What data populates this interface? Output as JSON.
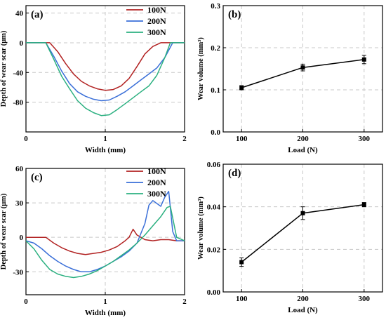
{
  "colors": {
    "100N": "#b22222",
    "200N": "#3a6fd8",
    "300N": "#2bb080",
    "line": "#000000",
    "grid": "#c8c8c8"
  },
  "chart_data": [
    {
      "type": "line",
      "panel_label": "(a)",
      "xlabel": "Width (mm)",
      "ylabel": "Depth of wear scar (μm)",
      "xlim": [
        0,
        2
      ],
      "ylim": [
        -120,
        50
      ],
      "xticks": [
        0,
        1,
        2
      ],
      "xtick_labels": [
        "0",
        "1",
        "2"
      ],
      "yticks": [
        40,
        0,
        -40,
        -80
      ],
      "ytick_labels": [
        "40",
        "0",
        "-40",
        "-80"
      ],
      "grid": true,
      "legend_position": "top-center",
      "series": [
        {
          "name": "100N",
          "color_key": "100N",
          "x": [
            0.0,
            0.3,
            0.4,
            0.5,
            0.6,
            0.7,
            0.8,
            0.9,
            1.0,
            1.1,
            1.2,
            1.3,
            1.4,
            1.5,
            1.6,
            1.7,
            1.8,
            1.9,
            2.0
          ],
          "y": [
            0,
            0,
            -12,
            -28,
            -42,
            -52,
            -58,
            -62,
            -64,
            -63,
            -58,
            -48,
            -32,
            -15,
            -5,
            0,
            0,
            0,
            0
          ]
        },
        {
          "name": "200N",
          "color_key": "200N",
          "x": [
            0.0,
            0.25,
            0.35,
            0.45,
            0.55,
            0.65,
            0.75,
            0.85,
            0.95,
            1.05,
            1.15,
            1.25,
            1.35,
            1.45,
            1.55,
            1.65,
            1.75,
            1.85,
            2.0
          ],
          "y": [
            0,
            0,
            -18,
            -38,
            -55,
            -66,
            -72,
            -76,
            -78,
            -77,
            -72,
            -66,
            -58,
            -50,
            -42,
            -34,
            -20,
            0,
            0
          ]
        },
        {
          "name": "300N",
          "color_key": "300N",
          "x": [
            0.0,
            0.25,
            0.35,
            0.45,
            0.55,
            0.65,
            0.75,
            0.85,
            0.95,
            1.05,
            1.15,
            1.25,
            1.35,
            1.45,
            1.55,
            1.65,
            1.75,
            1.82,
            2.0
          ],
          "y": [
            0,
            0,
            -22,
            -45,
            -62,
            -78,
            -88,
            -94,
            -98,
            -97,
            -90,
            -82,
            -74,
            -66,
            -58,
            -44,
            -20,
            0,
            0
          ]
        }
      ]
    },
    {
      "type": "line",
      "panel_label": "(b)",
      "xlabel": "Load (N)",
      "ylabel": "Wear volume (mm³)",
      "xlim": [
        70,
        330
      ],
      "ylim": [
        0.0,
        0.3
      ],
      "xticks": [
        100,
        200,
        300
      ],
      "xtick_labels": [
        "100",
        "200",
        "300"
      ],
      "yticks": [
        0.0,
        0.1,
        0.2,
        0.3
      ],
      "ytick_labels": [
        "0.0",
        "0.1",
        "0.2",
        "0.3"
      ],
      "grid": true,
      "series": [
        {
          "color_key": "line",
          "x": [
            100,
            200,
            300
          ],
          "y": [
            0.105,
            0.153,
            0.172
          ],
          "error": [
            0.005,
            0.008,
            0.01
          ]
        }
      ]
    },
    {
      "type": "line",
      "panel_label": "(c)",
      "xlabel": "Width (mm)",
      "ylabel": "Depth of wear scar (μm)",
      "xlim": [
        0,
        2
      ],
      "ylim": [
        -50,
        60
      ],
      "xticks": [
        0,
        1,
        2
      ],
      "xtick_labels": [
        "0",
        "1",
        "2"
      ],
      "yticks": [
        60,
        30,
        0,
        -30
      ],
      "ytick_labels": [
        "60",
        "30",
        "0",
        "-30"
      ],
      "grid": true,
      "legend_position": "top-center",
      "series": [
        {
          "name": "100N",
          "color_key": "100N",
          "x": [
            0.0,
            0.25,
            0.35,
            0.45,
            0.55,
            0.65,
            0.75,
            0.85,
            0.95,
            1.05,
            1.15,
            1.25,
            1.3,
            1.35,
            1.4,
            1.5,
            1.6,
            1.7,
            1.8,
            1.9,
            2.0
          ],
          "y": [
            0,
            0,
            -5,
            -9,
            -12,
            -14,
            -15,
            -14,
            -13,
            -11,
            -8,
            -3,
            0,
            7,
            2,
            -2,
            -3,
            -2,
            -2,
            -3,
            -3
          ]
        },
        {
          "name": "200N",
          "color_key": "200N",
          "x": [
            0.0,
            0.1,
            0.2,
            0.3,
            0.4,
            0.5,
            0.6,
            0.7,
            0.8,
            0.9,
            1.0,
            1.1,
            1.2,
            1.3,
            1.4,
            1.5,
            1.55,
            1.6,
            1.7,
            1.75,
            1.8,
            1.85,
            1.9,
            2.0
          ],
          "y": [
            -3,
            -5,
            -10,
            -16,
            -21,
            -25,
            -28,
            -30,
            -30,
            -28,
            -25,
            -21,
            -17,
            -12,
            -5,
            12,
            28,
            32,
            27,
            35,
            40,
            5,
            -3,
            -3
          ]
        },
        {
          "name": "300N",
          "color_key": "300N",
          "x": [
            0.0,
            0.1,
            0.2,
            0.3,
            0.4,
            0.5,
            0.6,
            0.7,
            0.8,
            0.9,
            1.0,
            1.1,
            1.2,
            1.3,
            1.4,
            1.5,
            1.6,
            1.7,
            1.78,
            1.82,
            1.9,
            2.0
          ],
          "y": [
            -3,
            -10,
            -20,
            -28,
            -32,
            -34,
            -35,
            -34,
            -32,
            -29,
            -25,
            -21,
            -16,
            -11,
            -5,
            2,
            10,
            18,
            26,
            27,
            0,
            -3
          ]
        }
      ]
    },
    {
      "type": "line",
      "panel_label": "(d)",
      "xlabel": "Load (N)",
      "ylabel": "Wear volume (mm³)",
      "xlim": [
        70,
        330
      ],
      "ylim": [
        0.0,
        0.06
      ],
      "xticks": [
        100,
        200,
        300
      ],
      "xtick_labels": [
        "100",
        "200",
        "300"
      ],
      "yticks": [
        0.0,
        0.02,
        0.04,
        0.06
      ],
      "ytick_labels": [
        "0.00",
        "0.02",
        "0.04",
        "0.06"
      ],
      "grid": true,
      "series": [
        {
          "color_key": "line",
          "x": [
            100,
            200,
            300
          ],
          "y": [
            0.014,
            0.037,
            0.041
          ],
          "error": [
            0.002,
            0.003,
            0.001
          ]
        }
      ]
    }
  ]
}
